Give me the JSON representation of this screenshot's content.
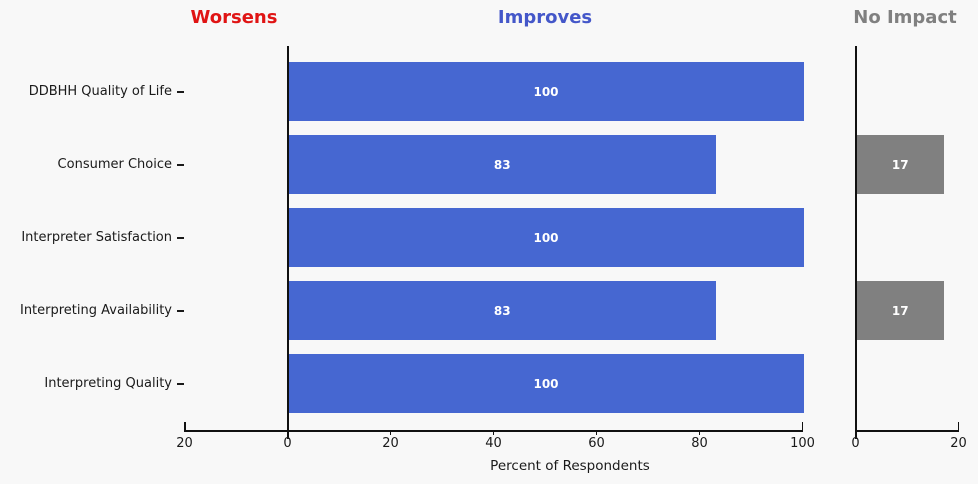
{
  "chart_data": {
    "type": "bar",
    "orientation": "horizontal",
    "xlabel": "Percent of Respondents",
    "background_color": "#f8f8f8",
    "bar_value_label_color": "#ffffff",
    "grid": false,
    "legend": null,
    "categories": [
      "DDBHH Quality of Life",
      "Consumer Choice",
      "Interpreter Satisfaction",
      "Interpreting Availability",
      "Interpreting Quality"
    ],
    "panels": [
      {
        "name": "Worsens",
        "header_color": "#e01414",
        "bar_color": "#e01414",
        "values": [
          0,
          0,
          0,
          0,
          0
        ],
        "tick_labels": [
          20
        ],
        "axis_range": [
          0,
          20
        ],
        "inverted": true
      },
      {
        "name": "Improves",
        "header_color": "#4457c9",
        "bar_color": "#4667d1",
        "values": [
          100,
          83,
          100,
          83,
          100
        ],
        "tick_labels": [
          0,
          20,
          40,
          60,
          80,
          100
        ],
        "axis_range": [
          0,
          110
        ],
        "inverted": false
      },
      {
        "name": "No Impact",
        "header_color": "#808080",
        "bar_color": "#808080",
        "values": [
          0,
          17,
          0,
          17,
          0
        ],
        "tick_labels": [
          0,
          20
        ],
        "axis_range": [
          0,
          20
        ],
        "inverted": false
      }
    ]
  }
}
